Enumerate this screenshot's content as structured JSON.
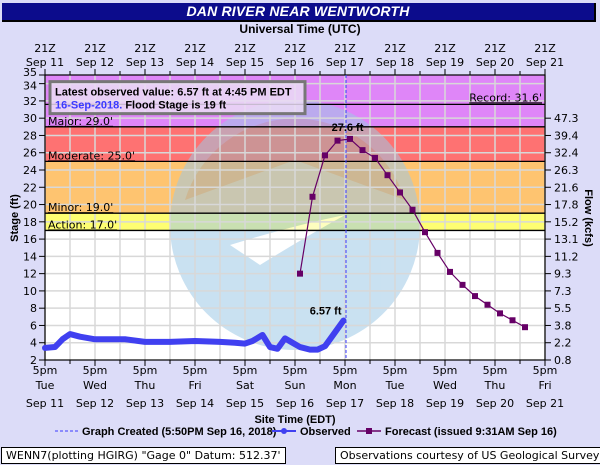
{
  "header": {
    "title": "DAN RIVER NEAR WENTWORTH",
    "top_axis_title": "Universal Time (UTC)",
    "bottom_axis_title": "Site Time (EDT)",
    "left_axis_title": "Stage (ft)",
    "right_axis_title": "Flow (kcfs)"
  },
  "info_box": {
    "line1": "Latest observed value: 6.57 ft at 4:45 PM EDT",
    "line2_date": "16-Sep-2018.",
    "line2_rest": "Flood Stage is 19 ft"
  },
  "thresholds": {
    "record": "Record: 31.6'",
    "major": "Major: 29.0'",
    "moderate": "Moderate: 25.0'",
    "minor": "Minor: 19.0'",
    "action": "Action: 17.0'"
  },
  "annotations": {
    "peak_label": "27.6 ft",
    "latest_label": "6.57 ft"
  },
  "legend": {
    "graph_created": "Graph Created (5:50PM Sep 16, 2018)",
    "observed": "Observed",
    "forecast": "Forecast (issued 9:31AM Sep 16)"
  },
  "footer": {
    "datum": "WENN7(plotting HGIRG) \"Gage 0\" Datum:  512.37'",
    "credit": "Observations courtesy of US Geological Survey"
  },
  "colors": {
    "title_bg": "#0c0c8c",
    "page_bg": "#dcdcf8",
    "record_band": "#df86f8",
    "major_band": "#fe7272",
    "moderate_band": "#fec470",
    "minor_band": "#fefe72",
    "observed": "#4040f0",
    "forecast": "#660066"
  },
  "chart_data": {
    "type": "line",
    "title": "DAN RIVER NEAR WENTWORTH",
    "xlabel": "Site Time (EDT)",
    "ylabel": "Stage (ft)",
    "y2label": "Flow (kcfs)",
    "top_xlabel": "Universal Time (UTC)",
    "ylim": [
      2,
      35
    ],
    "y_ticks": [
      2,
      4,
      6,
      8,
      10,
      12,
      14,
      16,
      18,
      20,
      22,
      24,
      26,
      28,
      30,
      32,
      34,
      35
    ],
    "y2_ticks": [
      {
        "stage": 2,
        "flow": "0.8"
      },
      {
        "stage": 4,
        "flow": "2.2"
      },
      {
        "stage": 6,
        "flow": "3.8"
      },
      {
        "stage": 8,
        "flow": "5.5"
      },
      {
        "stage": 10,
        "flow": "7.3"
      },
      {
        "stage": 12,
        "flow": "9.3"
      },
      {
        "stage": 14,
        "flow": "11.2"
      },
      {
        "stage": 16,
        "flow": "13.1"
      },
      {
        "stage": 18,
        "flow": "15.2"
      },
      {
        "stage": 20,
        "flow": "17.8"
      },
      {
        "stage": 22,
        "flow": "21.6"
      },
      {
        "stage": 24,
        "flow": "26.3"
      },
      {
        "stage": 26,
        "flow": "32.4"
      },
      {
        "stage": 28,
        "flow": "39.4"
      },
      {
        "stage": 30,
        "flow": "47.3"
      }
    ],
    "top_ticks": [
      {
        "time": "21Z",
        "date": "Sep 11"
      },
      {
        "time": "21Z",
        "date": "Sep 12"
      },
      {
        "time": "21Z",
        "date": "Sep 13"
      },
      {
        "time": "21Z",
        "date": "Sep 14"
      },
      {
        "time": "21Z",
        "date": "Sep 15"
      },
      {
        "time": "21Z",
        "date": "Sep 16"
      },
      {
        "time": "21Z",
        "date": "Sep 17"
      },
      {
        "time": "21Z",
        "date": "Sep 18"
      },
      {
        "time": "21Z",
        "date": "Sep 19"
      },
      {
        "time": "21Z",
        "date": "Sep 20"
      },
      {
        "time": "21Z",
        "date": "Sep 21"
      }
    ],
    "bottom_ticks": [
      {
        "time": "5pm",
        "day": "Tue",
        "date": "Sep 11"
      },
      {
        "time": "5pm",
        "day": "Wed",
        "date": "Sep 12"
      },
      {
        "time": "5pm",
        "day": "Thu",
        "date": "Sep 13"
      },
      {
        "time": "5pm",
        "day": "Fri",
        "date": "Sep 14"
      },
      {
        "time": "5pm",
        "day": "Sat",
        "date": "Sep 15"
      },
      {
        "time": "5pm",
        "day": "Sun",
        "date": "Sep 16"
      },
      {
        "time": "5pm",
        "day": "Mon",
        "date": "Sep 17"
      },
      {
        "time": "5pm",
        "day": "Tue",
        "date": "Sep 18"
      },
      {
        "time": "5pm",
        "day": "Wed",
        "date": "Sep 19"
      },
      {
        "time": "5pm",
        "day": "Thu",
        "date": "Sep 20"
      },
      {
        "time": "5pm",
        "day": "Fri",
        "date": "Sep 21"
      }
    ],
    "flood_categories": [
      {
        "name": "Record",
        "stage": 31.6
      },
      {
        "name": "Major",
        "stage": 29.0
      },
      {
        "name": "Moderate",
        "stage": 25.0
      },
      {
        "name": "Minor",
        "stage": 19.0
      },
      {
        "name": "Action",
        "stage": 17.0
      }
    ],
    "series": [
      {
        "name": "Observed",
        "x_days_from_sep11_5pm": [
          0,
          0.2,
          0.35,
          0.5,
          0.7,
          1.0,
          1.3,
          1.6,
          2.0,
          2.5,
          3.0,
          3.5,
          3.8,
          4.0,
          4.15,
          4.35,
          4.5,
          4.65,
          4.8,
          4.95,
          5.1,
          5.3,
          5.45,
          5.6,
          5.75,
          5.97
        ],
        "values": [
          3.4,
          3.5,
          4.4,
          5.0,
          4.7,
          4.4,
          4.4,
          4.4,
          4.1,
          4.1,
          4.2,
          4.1,
          4.0,
          3.9,
          4.2,
          4.9,
          3.5,
          3.3,
          4.5,
          4.0,
          3.5,
          3.2,
          3.2,
          3.6,
          4.8,
          6.57
        ]
      },
      {
        "name": "Forecast (issued 9:31AM Sep 16)",
        "x_days_from_sep11_5pm": [
          5.1,
          5.35,
          5.6,
          5.85,
          6.1,
          6.35,
          6.6,
          6.85,
          7.1,
          7.35,
          7.6,
          7.85,
          8.1,
          8.35,
          8.6,
          8.85,
          9.1,
          9.35,
          9.6
        ],
        "values": [
          12.0,
          20.9,
          25.7,
          27.4,
          27.6,
          26.3,
          25.4,
          23.4,
          21.4,
          19.4,
          16.8,
          14.4,
          12.2,
          10.7,
          9.4,
          8.4,
          7.4,
          6.6,
          5.8
        ]
      }
    ],
    "latest_observed": {
      "value": 6.57,
      "unit": "ft",
      "time": "4:45 PM EDT 16-Sep-2018"
    },
    "forecast_peak": {
      "value": 27.6,
      "unit": "ft"
    },
    "flood_stage": 19,
    "graph_created_marker_days": 6.02,
    "grid": true,
    "legend_position": "bottom"
  }
}
